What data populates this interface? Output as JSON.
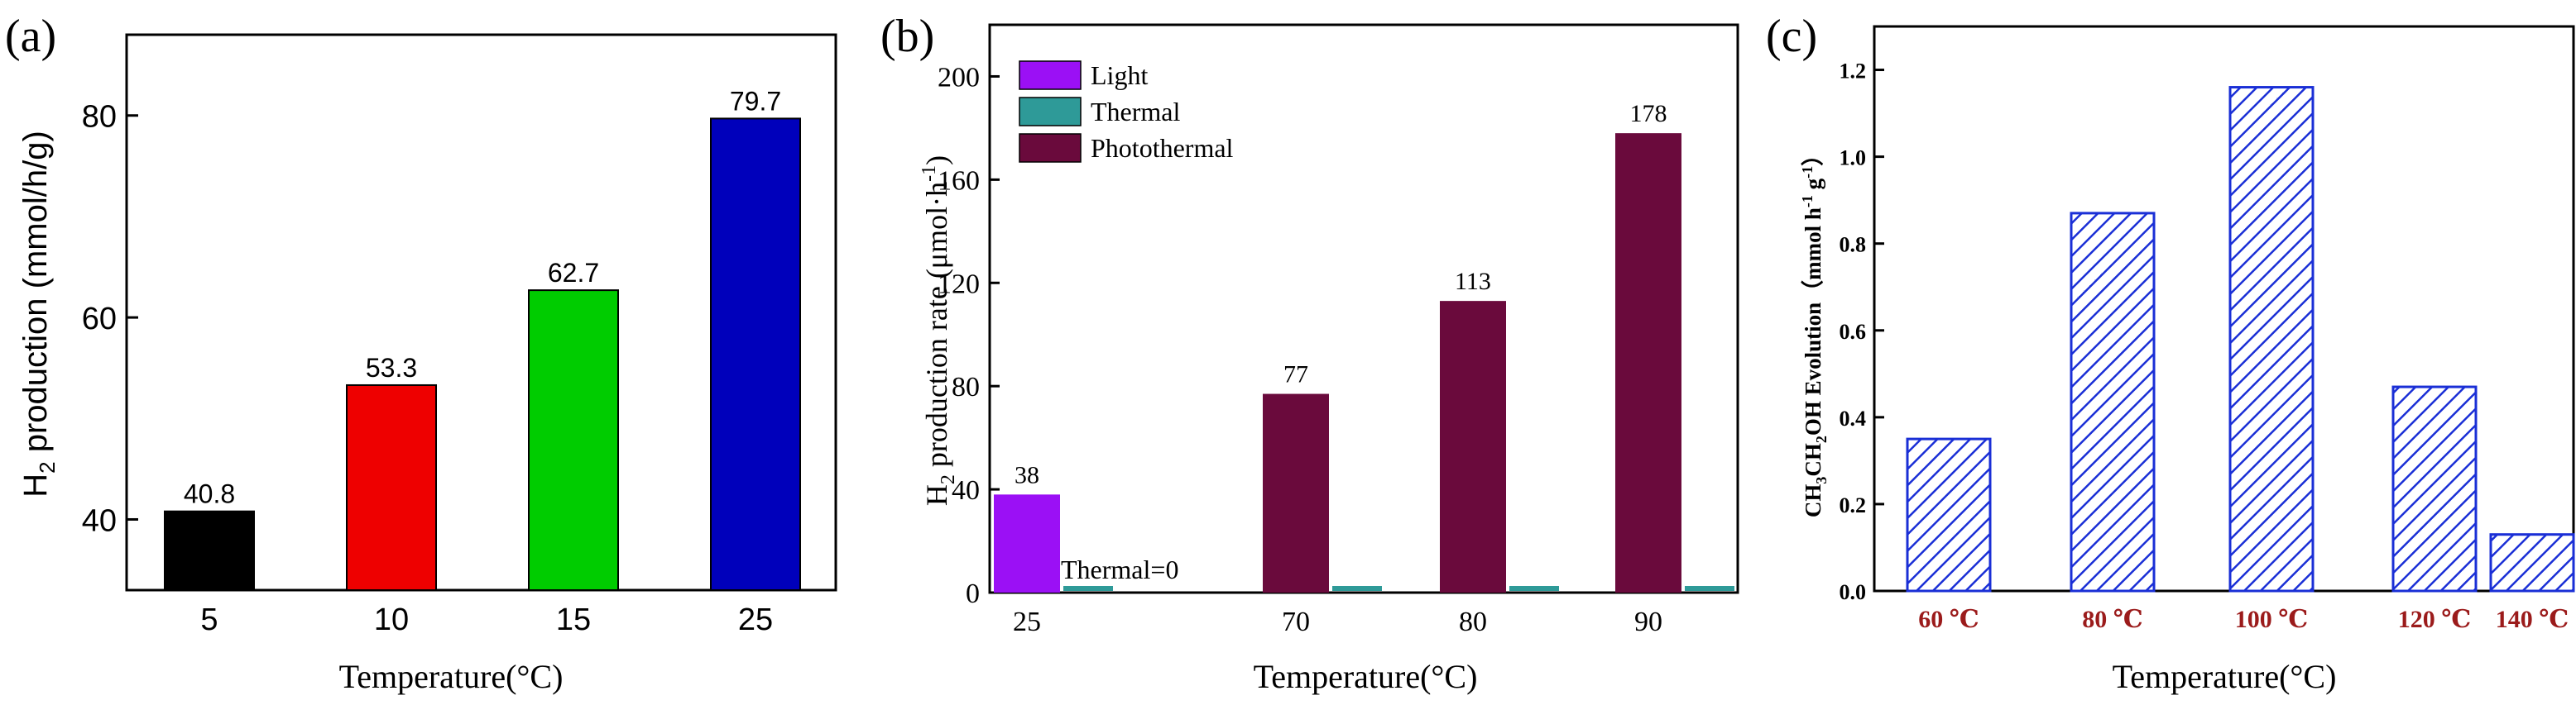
{
  "chart_data": [
    {
      "panel_label": "(a)",
      "type": "bar",
      "categories": [
        "5",
        "10",
        "15",
        "25"
      ],
      "values": [
        40.8,
        53.3,
        62.7,
        79.7
      ],
      "data_labels": [
        "40.8",
        "53.3",
        "62.7",
        "79.7"
      ],
      "colors": [
        "#000000",
        "#ee0000",
        "#00cc00",
        "#0000bb"
      ],
      "xlabel": "Temperature(°C)",
      "ylabel_main": "H",
      "ylabel_sub": "2",
      "ylabel_rest": " production (mmol/h/g)",
      "ylim": [
        33,
        88
      ],
      "yticks": [
        40,
        60,
        80
      ],
      "ytick_labels": [
        "40",
        "60",
        "80"
      ],
      "grid": false
    },
    {
      "panel_label": "(b)",
      "type": "bar",
      "categories": [
        "25",
        "70",
        "80",
        "90"
      ],
      "series": [
        {
          "name": "Light",
          "color": "#9b10f5",
          "values": [
            38,
            null,
            null,
            null
          ]
        },
        {
          "name": "Thermal",
          "color": "#2e9a98",
          "values": [
            0,
            0,
            0,
            0
          ]
        },
        {
          "name": "Photothermal",
          "color": "#6a0a3c",
          "values": [
            null,
            77,
            113,
            178
          ]
        }
      ],
      "data_labels": [
        "38",
        "77",
        "113",
        "178"
      ],
      "annotation": "Thermal=0",
      "xlabel": "Temperature(°C)",
      "ylabel_main": "H",
      "ylabel_sub": "2",
      "ylabel_rest": " production rate (μmol·h",
      "ylabel_sup": "-1",
      "ylabel_close": ")",
      "ylim": [
        0,
        220
      ],
      "yticks": [
        0,
        40,
        80,
        120,
        160,
        200
      ],
      "ytick_labels": [
        "0",
        "40",
        "80",
        "120",
        "160",
        "200"
      ],
      "legend_position": "top-left",
      "grid": false
    },
    {
      "panel_label": "(c)",
      "type": "bar",
      "categories": [
        "60 ℃",
        "80 ℃",
        "100 ℃",
        "120 ℃",
        "140 ℃"
      ],
      "values": [
        0.35,
        0.87,
        1.16,
        0.47,
        0.13
      ],
      "bar_color": "#1a2fd6",
      "pattern": "diagonal-hatch",
      "xlabel": "Temperature(°C)",
      "ylabel_a": "CH",
      "ylabel_a_sub": "3",
      "ylabel_b": "CH",
      "ylabel_b_sub": "2",
      "ylabel_c": "OH Evolution（mmol h",
      "ylabel_sup1": "-1",
      "ylabel_d": " g",
      "ylabel_sup2": "-1",
      "ylabel_e": "）",
      "ylim": [
        0,
        1.3
      ],
      "yticks": [
        0,
        0.2,
        0.4,
        0.6,
        0.8,
        1.0,
        1.2
      ],
      "ytick_labels": [
        "0.0",
        "0.2",
        "0.4",
        "0.6",
        "0.8",
        "1.0",
        "1.2"
      ],
      "grid": false
    }
  ]
}
